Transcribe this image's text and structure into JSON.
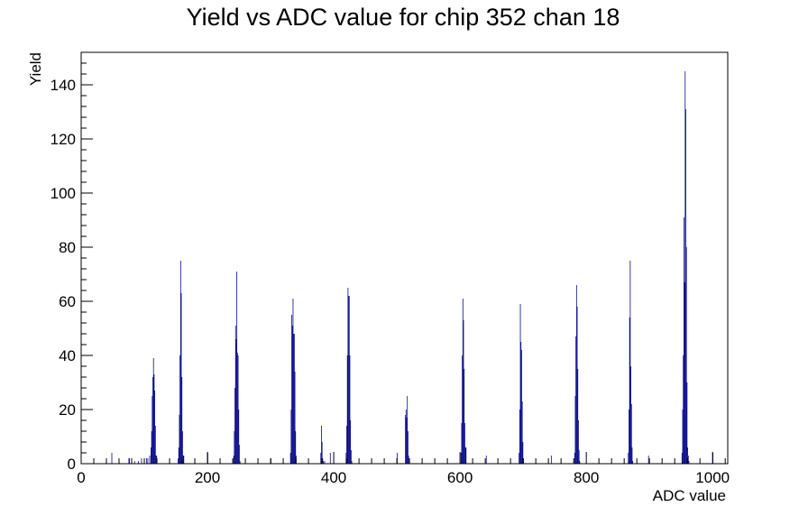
{
  "chart_data": {
    "type": "bar",
    "title": "Yield vs ADC value for chip 352 chan 18",
    "xlabel": "ADC value",
    "ylabel": "Yield",
    "xlim": [
      0,
      1024
    ],
    "ylim": [
      0,
      152
    ],
    "grid": false,
    "legend": "none",
    "colors": {
      "bars": "#0a0a8c",
      "axis": "#000000",
      "background": "#ffffff"
    },
    "x_ticks": [
      0,
      200,
      400,
      600,
      800,
      1000
    ],
    "y_ticks": [
      0,
      20,
      40,
      60,
      80,
      100,
      120,
      140
    ],
    "bin_width": 1,
    "series": [
      {
        "bins": [
          [
            48,
            4
          ],
          [
            75,
            2
          ],
          [
            76,
            2
          ],
          [
            84,
            1
          ],
          [
            90,
            1
          ],
          [
            95,
            2
          ],
          [
            103,
            2
          ],
          [
            105,
            2
          ],
          [
            108,
            3
          ],
          [
            110,
            6
          ],
          [
            111,
            12
          ],
          [
            112,
            25
          ],
          [
            113,
            32
          ],
          [
            114,
            39
          ],
          [
            115,
            33
          ],
          [
            116,
            27
          ],
          [
            117,
            14
          ],
          [
            118,
            3
          ],
          [
            119,
            3
          ],
          [
            153,
            2
          ],
          [
            154,
            6
          ],
          [
            155,
            18
          ],
          [
            156,
            40
          ],
          [
            157,
            75
          ],
          [
            158,
            63
          ],
          [
            159,
            32
          ],
          [
            160,
            12
          ],
          [
            161,
            3
          ],
          [
            162,
            3
          ],
          [
            200,
            4
          ],
          [
            241,
            3
          ],
          [
            242,
            12
          ],
          [
            243,
            28
          ],
          [
            244,
            51
          ],
          [
            245,
            46
          ],
          [
            246,
            71
          ],
          [
            247,
            41
          ],
          [
            248,
            40
          ],
          [
            249,
            20
          ],
          [
            250,
            7
          ],
          [
            251,
            1
          ],
          [
            300,
            2
          ],
          [
            331,
            4
          ],
          [
            332,
            20
          ],
          [
            333,
            55
          ],
          [
            334,
            51
          ],
          [
            335,
            61
          ],
          [
            336,
            48
          ],
          [
            337,
            48
          ],
          [
            338,
            34
          ],
          [
            339,
            12
          ],
          [
            340,
            3
          ],
          [
            379,
            4
          ],
          [
            380,
            14
          ],
          [
            381,
            8
          ],
          [
            382,
            2
          ],
          [
            383,
            1
          ],
          [
            385,
            1
          ],
          [
            394,
            4
          ],
          [
            419,
            4
          ],
          [
            420,
            14
          ],
          [
            421,
            40
          ],
          [
            422,
            65
          ],
          [
            423,
            62
          ],
          [
            424,
            62
          ],
          [
            425,
            40
          ],
          [
            426,
            16
          ],
          [
            427,
            5
          ],
          [
            428,
            1
          ],
          [
            500,
            4
          ],
          [
            513,
            18
          ],
          [
            514,
            20
          ],
          [
            515,
            17
          ],
          [
            516,
            25
          ],
          [
            517,
            12
          ],
          [
            518,
            3
          ],
          [
            601,
            4
          ],
          [
            602,
            15
          ],
          [
            603,
            40
          ],
          [
            604,
            61
          ],
          [
            605,
            53
          ],
          [
            606,
            35
          ],
          [
            607,
            15
          ],
          [
            608,
            6
          ],
          [
            609,
            6
          ],
          [
            641,
            3
          ],
          [
            693,
            4
          ],
          [
            694,
            20
          ],
          [
            695,
            59
          ],
          [
            696,
            45
          ],
          [
            697,
            42
          ],
          [
            698,
            23
          ],
          [
            699,
            8
          ],
          [
            700,
            2
          ],
          [
            744,
            3
          ],
          [
            781,
            4
          ],
          [
            782,
            25
          ],
          [
            783,
            47
          ],
          [
            784,
            66
          ],
          [
            785,
            58
          ],
          [
            786,
            35
          ],
          [
            787,
            16
          ],
          [
            788,
            5
          ],
          [
            789,
            1
          ],
          [
            866,
            4
          ],
          [
            867,
            20
          ],
          [
            868,
            54
          ],
          [
            869,
            75
          ],
          [
            870,
            36
          ],
          [
            871,
            22
          ],
          [
            872,
            6
          ],
          [
            873,
            1
          ],
          [
            898,
            3
          ],
          [
            951,
            4
          ],
          [
            952,
            20
          ],
          [
            953,
            40
          ],
          [
            954,
            91
          ],
          [
            955,
            67
          ],
          [
            956,
            145
          ],
          [
            957,
            131
          ],
          [
            958,
            80
          ],
          [
            959,
            30
          ],
          [
            960,
            6
          ],
          [
            961,
            3
          ],
          [
            962,
            1
          ],
          [
            1000,
            4
          ]
        ]
      }
    ]
  }
}
